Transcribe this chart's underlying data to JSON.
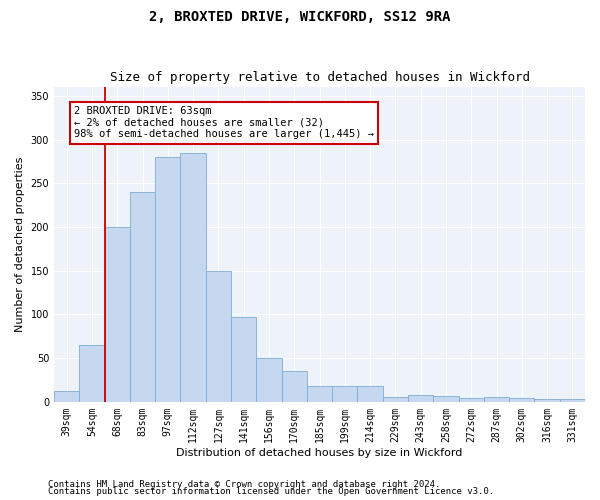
{
  "title": "2, BROXTED DRIVE, WICKFORD, SS12 9RA",
  "subtitle": "Size of property relative to detached houses in Wickford",
  "xlabel": "Distribution of detached houses by size in Wickford",
  "ylabel": "Number of detached properties",
  "categories": [
    "39sqm",
    "54sqm",
    "68sqm",
    "83sqm",
    "97sqm",
    "112sqm",
    "127sqm",
    "141sqm",
    "156sqm",
    "170sqm",
    "185sqm",
    "199sqm",
    "214sqm",
    "229sqm",
    "243sqm",
    "258sqm",
    "272sqm",
    "287sqm",
    "302sqm",
    "316sqm",
    "331sqm"
  ],
  "values": [
    12,
    65,
    200,
    240,
    280,
    285,
    150,
    97,
    50,
    35,
    18,
    18,
    18,
    5,
    8,
    7,
    4,
    5,
    4,
    3,
    3
  ],
  "bar_color": "#c5d8f0",
  "bar_edge_color": "#7aaed6",
  "vline_color": "#cc0000",
  "vline_x_index": 1.5,
  "annotation_text": "2 BROXTED DRIVE: 63sqm\n← 2% of detached houses are smaller (32)\n98% of semi-detached houses are larger (1,445) →",
  "annotation_box_color": "#ffffff",
  "annotation_box_edge": "#cc0000",
  "ylim": [
    0,
    360
  ],
  "yticks": [
    0,
    50,
    100,
    150,
    200,
    250,
    300,
    350
  ],
  "footer1": "Contains HM Land Registry data © Crown copyright and database right 2024.",
  "footer2": "Contains public sector information licensed under the Open Government Licence v3.0.",
  "bg_color": "#ffffff",
  "plot_bg_color": "#eef2f9",
  "title_fontsize": 10,
  "subtitle_fontsize": 9,
  "axis_label_fontsize": 8,
  "tick_fontsize": 7,
  "footer_fontsize": 6.5,
  "annotation_fontsize": 7.5
}
